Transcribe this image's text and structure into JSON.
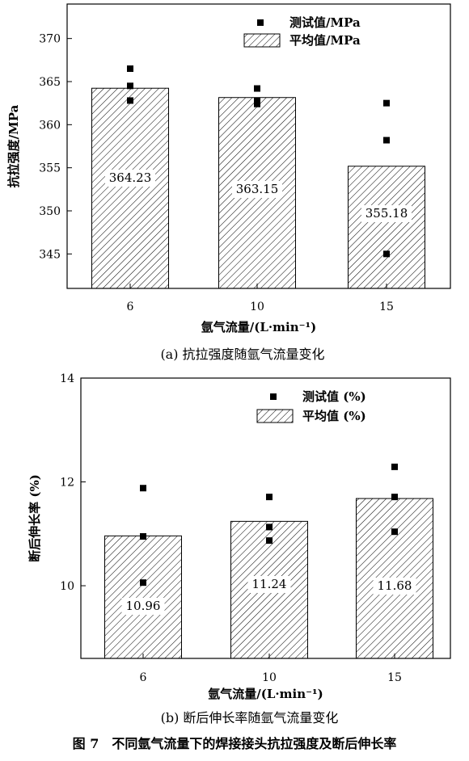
{
  "figure_caption": "图 7　不同氩气流量下的焊接接头抗拉强度及断后伸长率",
  "chart_data": [
    {
      "type": "bar",
      "caption": "(a) 抗拉强度随氩气流量变化",
      "categories": [
        "6",
        "10",
        "15"
      ],
      "series": [
        {
          "name": "平均值/MPa",
          "kind": "bar",
          "values": [
            364.23,
            363.15,
            355.18
          ]
        },
        {
          "name": "测试值/MPa",
          "kind": "scatter",
          "points": [
            [
              [
                366.5,
                364.5,
                362.8
              ]
            ],
            [
              [
                364.2,
                362.8,
                362.4
              ]
            ],
            [
              [
                362.5,
                358.2,
                345.0
              ]
            ]
          ]
        }
      ],
      "value_labels": [
        "364.23",
        "363.15",
        "355.18"
      ],
      "xlabel": "氩气流量/(L·min⁻¹)",
      "ylabel": "抗拉强度/MPa",
      "ylim": [
        341,
        374
      ],
      "yticks": [
        345,
        350,
        355,
        360,
        365,
        370
      ],
      "grid": false,
      "legend_position": "top-right"
    },
    {
      "type": "bar",
      "caption": "(b) 断后伸长率随氩气流量变化",
      "categories": [
        "6",
        "10",
        "15"
      ],
      "series": [
        {
          "name": "平均值 (%)",
          "kind": "bar",
          "values": [
            10.96,
            11.24,
            11.68
          ]
        },
        {
          "name": "测试值 (%)",
          "kind": "scatter",
          "points": [
            [
              [
                11.88,
                10.95,
                10.06
              ]
            ],
            [
              [
                11.71,
                11.13,
                10.87
              ]
            ],
            [
              [
                12.29,
                11.71,
                11.04
              ]
            ]
          ]
        }
      ],
      "value_labels": [
        "10.96",
        "11.24",
        "11.68"
      ],
      "xlabel": "氩气流量/(L·min⁻¹)",
      "ylabel": "断后伸长率 (%)",
      "ylim": [
        8.6,
        14
      ],
      "yticks": [
        10,
        12,
        14
      ],
      "grid": false,
      "legend_position": "top-right"
    }
  ]
}
